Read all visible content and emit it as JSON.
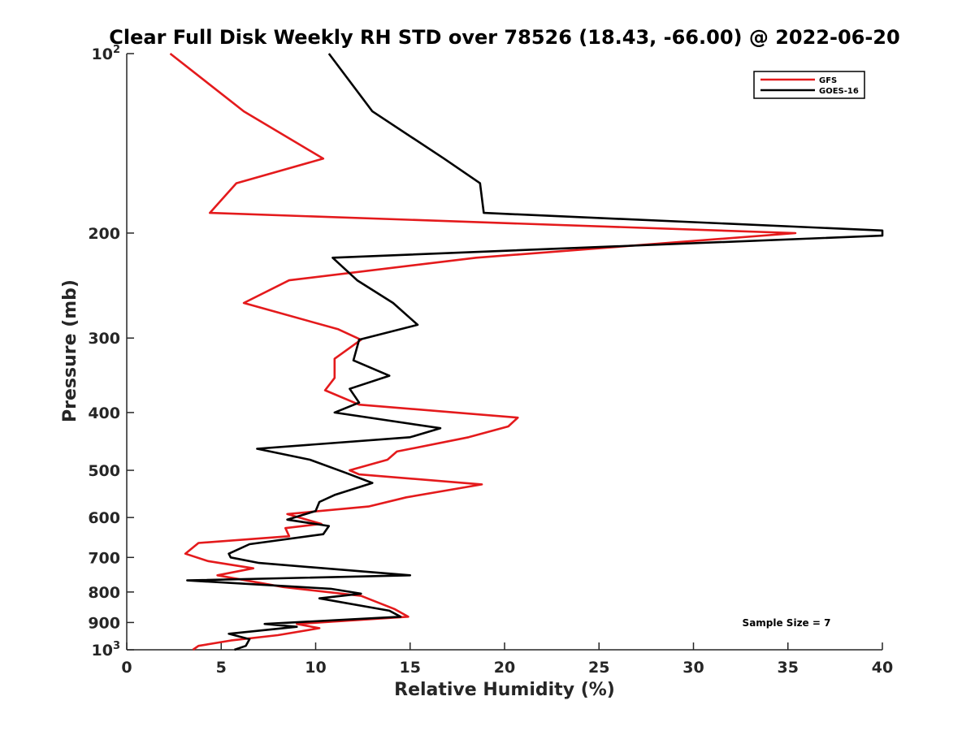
{
  "chart_data": {
    "type": "line",
    "title": "Clear Full Disk Weekly RH STD over 78526 (18.43, -66.00) @ 2022-06-20",
    "xlabel": "Relative Humidity (%)",
    "ylabel": "Pressure (mb)",
    "xlim": [
      0,
      40
    ],
    "ylim": [
      100,
      1000
    ],
    "yscale": "log",
    "y_reversed": true,
    "grid": false,
    "legend_position": "top-right",
    "x_ticks": [
      "0",
      "5",
      "10",
      "15",
      "20",
      "25",
      "30",
      "35",
      "40"
    ],
    "y_ticks": [
      {
        "value": 100,
        "base": "10",
        "exp": "2"
      },
      {
        "value": 200,
        "label": "200"
      },
      {
        "value": 300,
        "label": "300"
      },
      {
        "value": 400,
        "label": "400"
      },
      {
        "value": 500,
        "label": "500"
      },
      {
        "value": 600,
        "label": "600"
      },
      {
        "value": 700,
        "label": "700"
      },
      {
        "value": 800,
        "label": "800"
      },
      {
        "value": 900,
        "label": "900"
      },
      {
        "value": 1000,
        "base": "10",
        "exp": "3"
      }
    ],
    "annotation": "Sample Size = 7",
    "series": [
      {
        "name": "GFS",
        "color": "#e41a1c",
        "points": [
          [
            2.3,
            100
          ],
          [
            6.2,
            125
          ],
          [
            10.4,
            150
          ],
          [
            5.8,
            165
          ],
          [
            4.4,
            185
          ],
          [
            35.4,
            200
          ],
          [
            18.5,
            220
          ],
          [
            8.6,
            240
          ],
          [
            6.2,
            262
          ],
          [
            11.2,
            290
          ],
          [
            12.4,
            302
          ],
          [
            11.0,
            325
          ],
          [
            11.0,
            350
          ],
          [
            10.5,
            367
          ],
          [
            12.3,
            388
          ],
          [
            20.7,
            408
          ],
          [
            20.2,
            422
          ],
          [
            18.1,
            440
          ],
          [
            14.3,
            465
          ],
          [
            13.8,
            480
          ],
          [
            11.8,
            500
          ],
          [
            12.3,
            508
          ],
          [
            18.8,
            528
          ],
          [
            14.8,
            555
          ],
          [
            12.8,
            575
          ],
          [
            8.5,
            592
          ],
          [
            10.3,
            615
          ],
          [
            8.4,
            625
          ],
          [
            8.6,
            645
          ],
          [
            3.8,
            662
          ],
          [
            3.1,
            690
          ],
          [
            4.3,
            710
          ],
          [
            6.7,
            730
          ],
          [
            4.8,
            750
          ],
          [
            8.3,
            785
          ],
          [
            12.4,
            812
          ],
          [
            14.2,
            855
          ],
          [
            14.9,
            880
          ],
          [
            9.0,
            905
          ],
          [
            10.2,
            920
          ],
          [
            8.0,
            945
          ],
          [
            5.5,
            965
          ],
          [
            3.8,
            985
          ],
          [
            3.5,
            1000
          ]
        ]
      },
      {
        "name": "GOES-16",
        "color": "#000000",
        "points": [
          [
            10.7,
            100
          ],
          [
            13.0,
            125
          ],
          [
            16.8,
            150
          ],
          [
            18.7,
            165
          ],
          [
            18.9,
            185
          ],
          [
            40.0,
            198
          ],
          [
            40.0,
            202
          ],
          [
            10.9,
            220
          ],
          [
            12.2,
            240
          ],
          [
            14.1,
            262
          ],
          [
            15.4,
            285
          ],
          [
            12.3,
            302
          ],
          [
            12.0,
            327
          ],
          [
            13.9,
            347
          ],
          [
            11.8,
            365
          ],
          [
            12.3,
            385
          ],
          [
            11.0,
            400
          ],
          [
            16.6,
            425
          ],
          [
            15.0,
            440
          ],
          [
            6.9,
            460
          ],
          [
            9.7,
            480
          ],
          [
            11.6,
            505
          ],
          [
            13.0,
            525
          ],
          [
            11.0,
            550
          ],
          [
            10.2,
            565
          ],
          [
            10.0,
            585
          ],
          [
            8.5,
            605
          ],
          [
            10.7,
            620
          ],
          [
            10.4,
            640
          ],
          [
            6.5,
            665
          ],
          [
            5.4,
            690
          ],
          [
            5.5,
            700
          ],
          [
            7.0,
            715
          ],
          [
            15.0,
            750
          ],
          [
            3.2,
            765
          ],
          [
            10.8,
            790
          ],
          [
            12.4,
            805
          ],
          [
            10.2,
            820
          ],
          [
            13.9,
            860
          ],
          [
            14.5,
            880
          ],
          [
            7.3,
            905
          ],
          [
            9.0,
            915
          ],
          [
            5.4,
            940
          ],
          [
            6.5,
            960
          ],
          [
            6.3,
            985
          ],
          [
            5.7,
            1000
          ]
        ]
      }
    ]
  }
}
